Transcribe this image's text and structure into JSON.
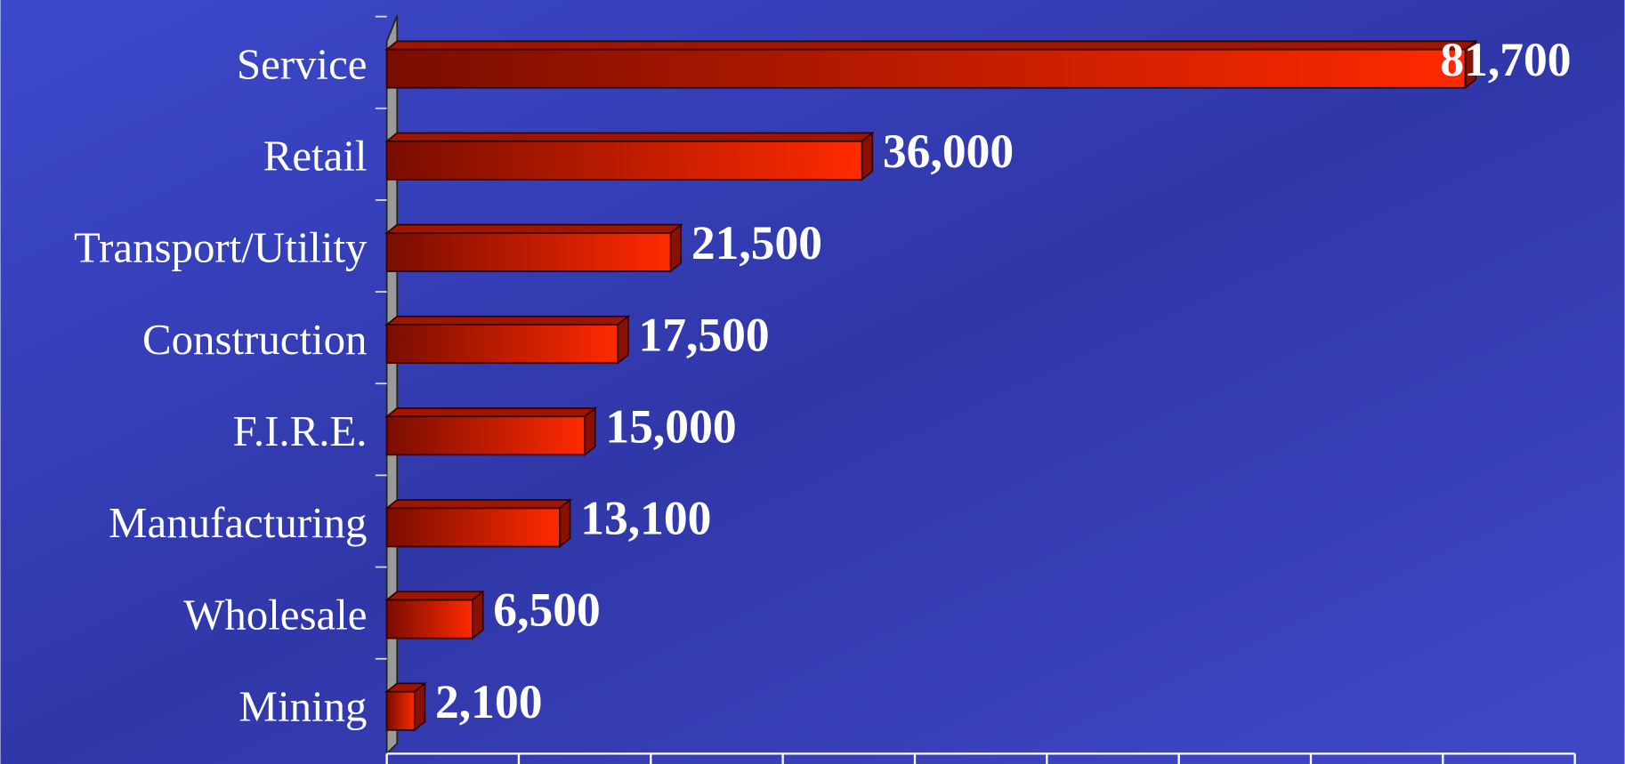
{
  "chart_data": {
    "type": "bar",
    "orientation": "horizontal",
    "categories": [
      "Service",
      "Retail",
      "Transport/Utility",
      "Construction",
      "F.I.R.E.",
      "Manufacturing",
      "Wholesale",
      "Mining"
    ],
    "values": [
      81700,
      36000,
      21500,
      17500,
      15000,
      13100,
      6500,
      2100
    ],
    "value_labels": [
      "81,700",
      "36,000",
      "21,500",
      "17,500",
      "15,000",
      "13,100",
      "6,500",
      "2,100"
    ],
    "color": "#ff2a00",
    "xlim": [
      0,
      90000
    ],
    "xticks": [
      0,
      10000,
      20000,
      30000,
      40000,
      50000,
      60000,
      70000,
      80000,
      90000
    ]
  }
}
